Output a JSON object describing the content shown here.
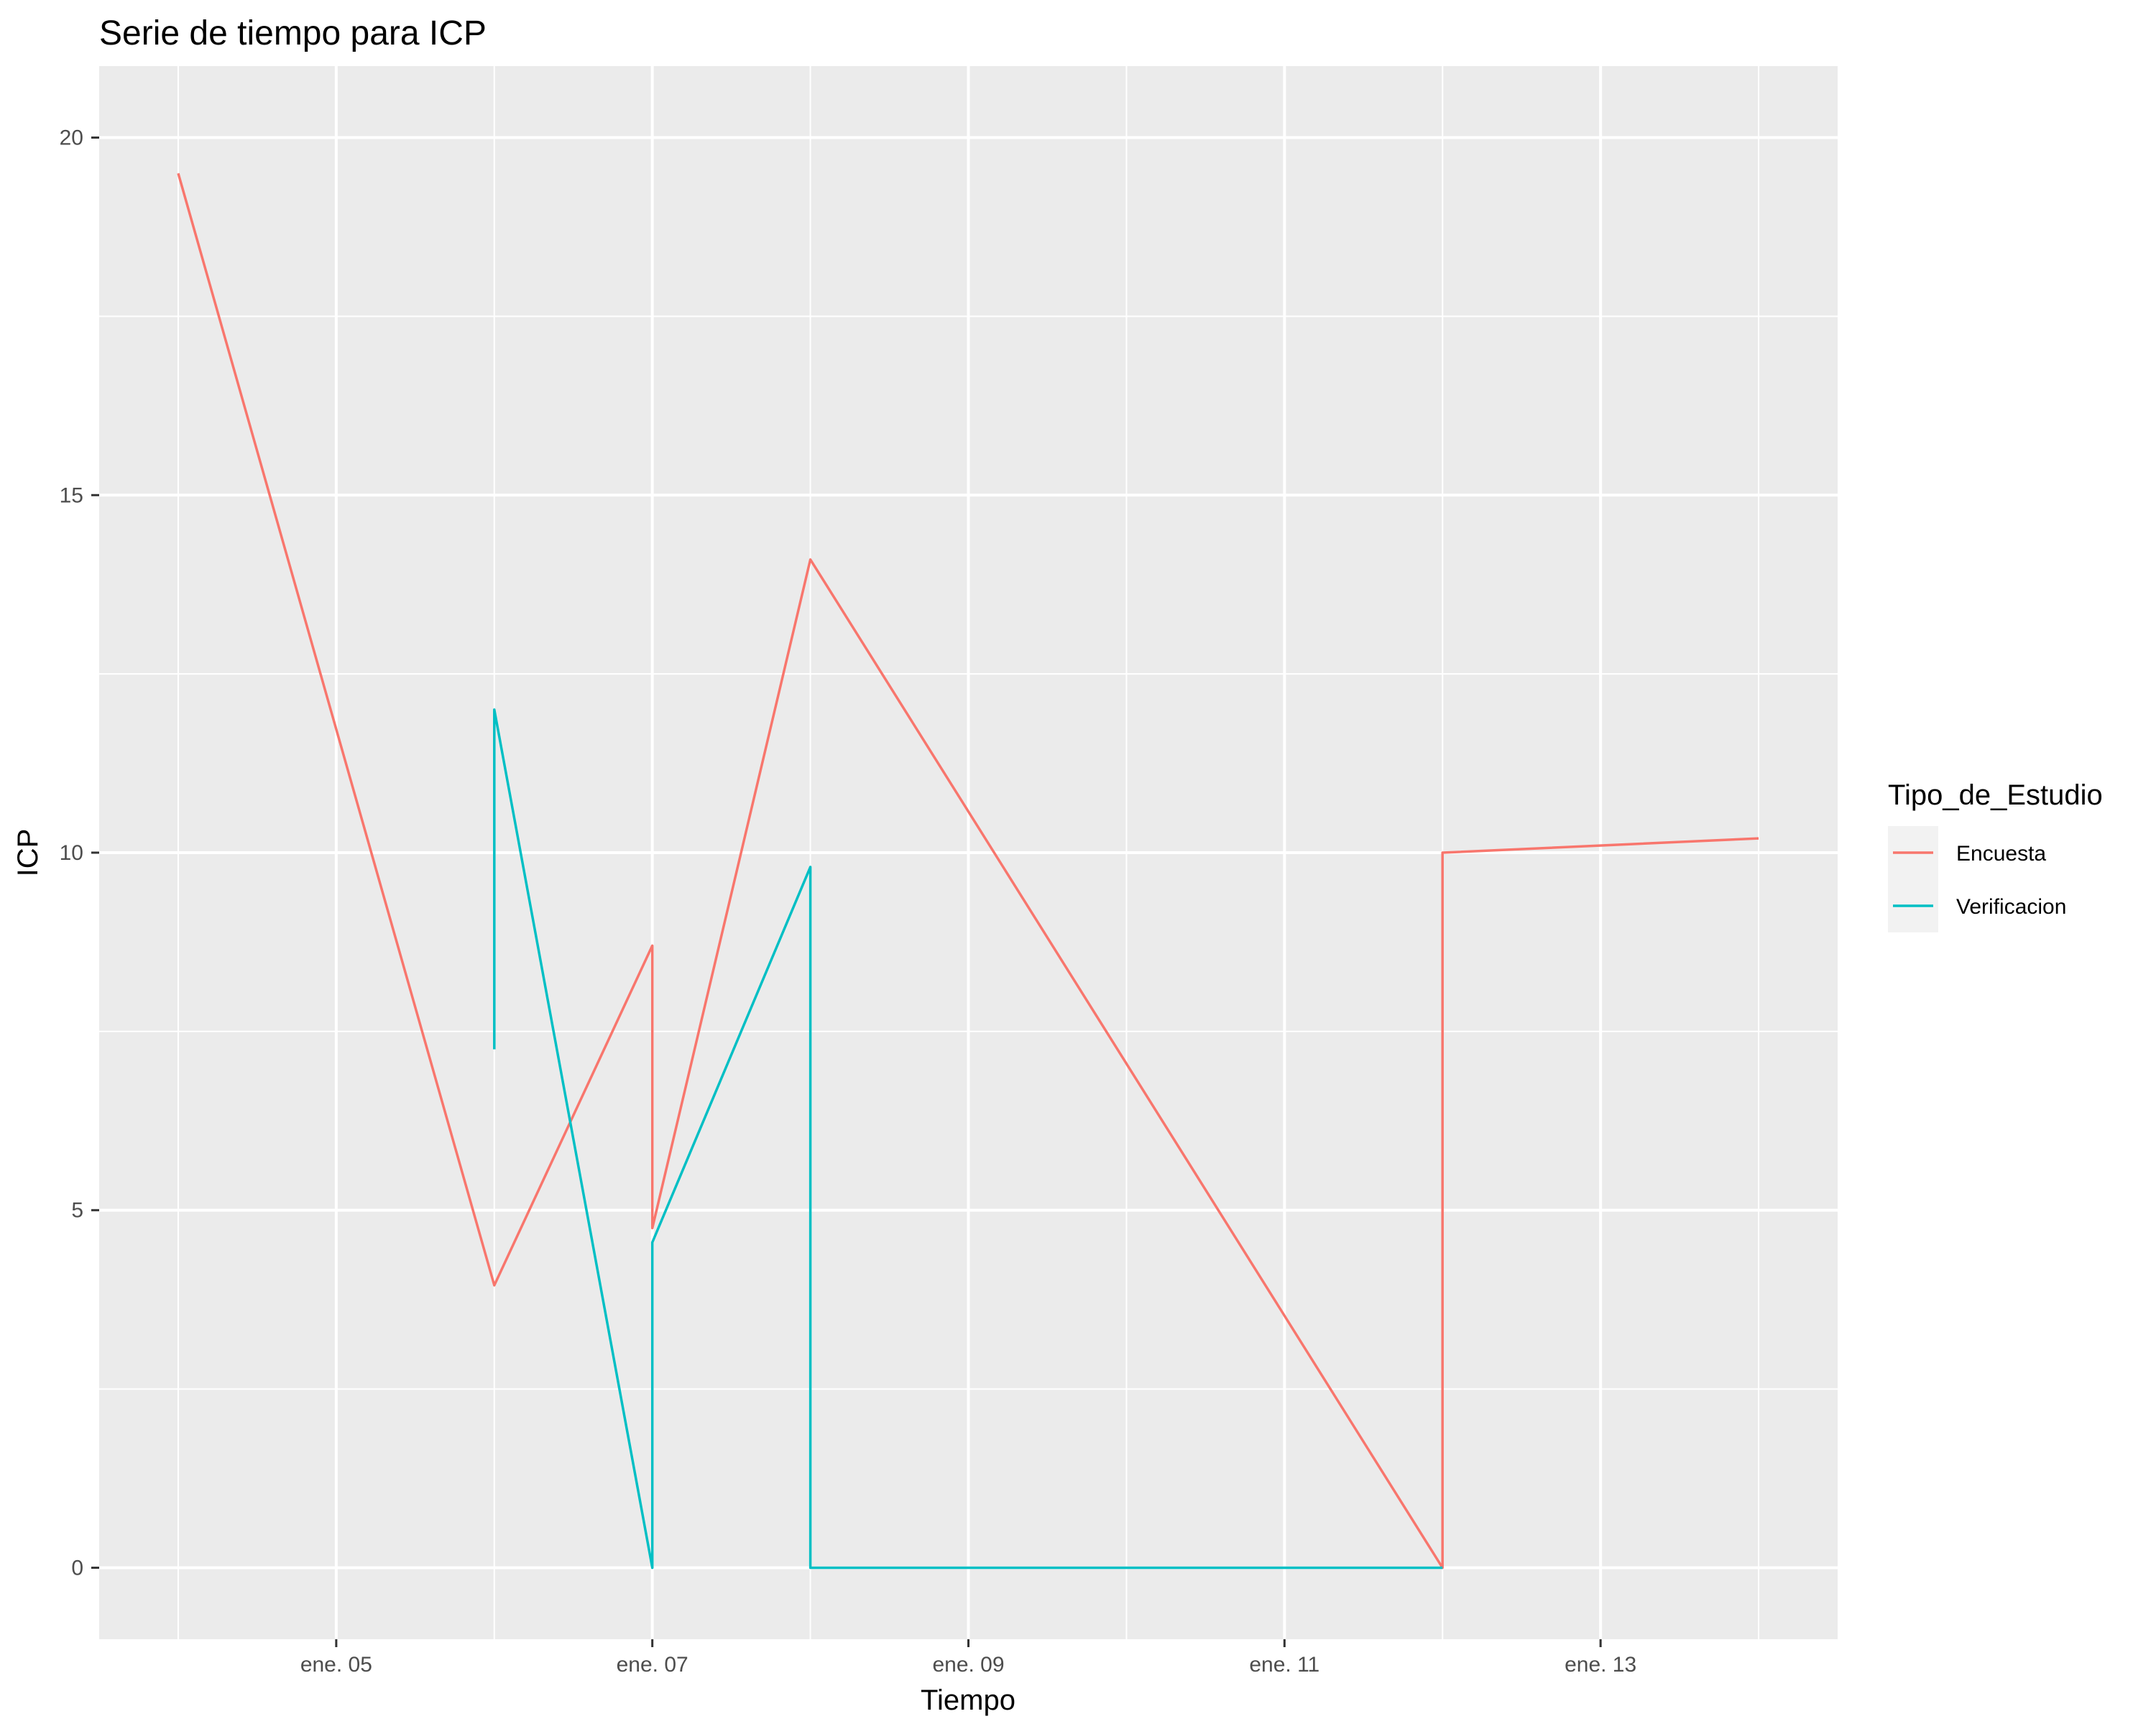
{
  "chart_data": {
    "type": "line",
    "title": "Serie de tiempo para ICP",
    "xlabel": "Tiempo",
    "ylabel": "ICP",
    "x_axis": {
      "kind": "date",
      "range": [
        "2024-01-03T12:00",
        "2024-01-14T12:00"
      ],
      "ticks": [
        {
          "value": "2024-01-05",
          "label": "ene. 05"
        },
        {
          "value": "2024-01-07",
          "label": "ene. 07"
        },
        {
          "value": "2024-01-09",
          "label": "ene. 09"
        },
        {
          "value": "2024-01-11",
          "label": "ene. 11"
        },
        {
          "value": "2024-01-13",
          "label": "ene. 13"
        }
      ],
      "minor_ticks": [
        "2024-01-04",
        "2024-01-06",
        "2024-01-08",
        "2024-01-10",
        "2024-01-12",
        "2024-01-14"
      ]
    },
    "y_axis": {
      "range": [
        -1,
        21
      ],
      "ticks": [
        0,
        5,
        10,
        15,
        20
      ],
      "minor_ticks": [
        2.5,
        7.5,
        12.5,
        17.5
      ]
    },
    "grid": true,
    "legend": {
      "title": "Tipo_de_Estudio",
      "position": "right"
    },
    "colors": {
      "panel": "#ebebeb",
      "grid": "#ffffff",
      "tick": "#333333",
      "legend_key_bg": "#f2f2f2"
    },
    "series": [
      {
        "name": "Encuesta",
        "color": "#f8766d",
        "points": [
          {
            "x": "2024-01-04",
            "y": 19.5
          },
          {
            "x": "2024-01-06",
            "y": 3.95
          },
          {
            "x": "2024-01-07",
            "y": 8.7
          },
          {
            "x": "2024-01-07",
            "y": 4.75
          },
          {
            "x": "2024-01-08",
            "y": 14.1
          },
          {
            "x": "2024-01-12",
            "y": 0
          },
          {
            "x": "2024-01-12",
            "y": 10
          },
          {
            "x": "2024-01-14",
            "y": 10.2
          }
        ]
      },
      {
        "name": "Verificacion",
        "color": "#00bfc4",
        "points": [
          {
            "x": "2024-01-06",
            "y": 7.25
          },
          {
            "x": "2024-01-06",
            "y": 12
          },
          {
            "x": "2024-01-07",
            "y": 0
          },
          {
            "x": "2024-01-07",
            "y": 4.55
          },
          {
            "x": "2024-01-08",
            "y": 9.8
          },
          {
            "x": "2024-01-08",
            "y": 0
          },
          {
            "x": "2024-01-12",
            "y": 0
          }
        ]
      }
    ]
  }
}
